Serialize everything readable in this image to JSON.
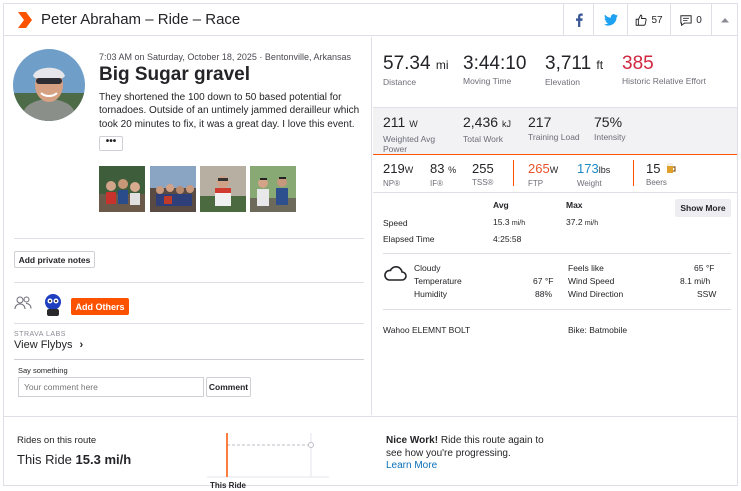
{
  "header": {
    "title": "Peter Abraham – Ride – Race",
    "kudos_count": "57",
    "comment_count": "0"
  },
  "activity": {
    "meta": "7:03 AM on Saturday, October 18, 2025 · Bentonville, Arkansas",
    "name": "Big Sugar gravel",
    "description": "They shortened the 100 down to 50 based potential for tornadoes. Outside of an untimely jammed derailleur which took 20 minutes to fix, it was a great day. I love this event.",
    "more_label": "•••"
  },
  "actions": {
    "private_notes": "Add private notes",
    "add_others": "Add Others",
    "labs": "STRAVA LABS",
    "flybys": "View Flybys",
    "flybys_chevron": "›",
    "say_something": "Say something",
    "comment_placeholder": "Your comment here",
    "comment_button": "Comment"
  },
  "primary_stats": [
    {
      "value": "57.34",
      "unit": "mi",
      "label": "Distance"
    },
    {
      "value": "3:44:10",
      "unit": "",
      "label": "Moving Time"
    },
    {
      "value": "3,711",
      "unit": "ft",
      "label": "Elevation"
    },
    {
      "value": "385",
      "unit": "",
      "label": "Historic Relative Effort"
    }
  ],
  "secondary_stats": [
    {
      "value": "211",
      "unit": "W",
      "label": "Weighted Avg Power"
    },
    {
      "value": "2,436",
      "unit": "kJ",
      "label": "Total Work"
    },
    {
      "value": "217",
      "unit": "",
      "label": "Training Load"
    },
    {
      "value": "75%",
      "unit": "",
      "label": "Intensity"
    }
  ],
  "tertiary_stats": [
    {
      "value": "219",
      "unit": "W",
      "label": "NP®"
    },
    {
      "value": "83",
      "unit": "%",
      "label": "IF®"
    },
    {
      "value": "255",
      "unit": "",
      "label": "TSS®"
    },
    {
      "value": "265",
      "unit": "W",
      "label": "FTP"
    },
    {
      "value": "173",
      "unit": "lbs",
      "label": "Weight"
    },
    {
      "value": "15",
      "unit": "",
      "label": "Beers"
    }
  ],
  "splits": {
    "col_avg": "Avg",
    "col_max": "Max",
    "speed_label": "Speed",
    "speed_avg": "15.3",
    "speed_avg_unit": "mi/h",
    "speed_max": "37.2",
    "speed_max_unit": "mi/h",
    "elapsed_label": "Elapsed Time",
    "elapsed_value": "4:25:58",
    "show_more": "Show More"
  },
  "weather": {
    "condition": "Cloudy",
    "temperature_label": "Temperature",
    "temperature_value": "67 °F",
    "humidity_label": "Humidity",
    "humidity_value": "88%",
    "feels_like_label": "Feels like",
    "feels_like_value": "65 °F",
    "wind_speed_label": "Wind Speed",
    "wind_speed_value": "8.1 mi/h",
    "wind_dir_label": "Wind Direction",
    "wind_dir_value": "SSW"
  },
  "device": {
    "device": "Wahoo ELEMNT BOLT",
    "bike": "Bike: Batmobile"
  },
  "route": {
    "label": "Rides on this route",
    "this_ride_prefix": "This Ride",
    "this_ride_value": "15.3 mi/h",
    "chart_label": "This Ride",
    "nice_bold": "Nice Work!",
    "nice_text": " Ride this route again to see how you're progressing.",
    "learn_more": "Learn More"
  },
  "colors": {
    "accent": "#fc5200",
    "effort_red": "#d0263f",
    "ftp_orange": "#e8532a",
    "weight_blue": "#1c8ac7"
  }
}
